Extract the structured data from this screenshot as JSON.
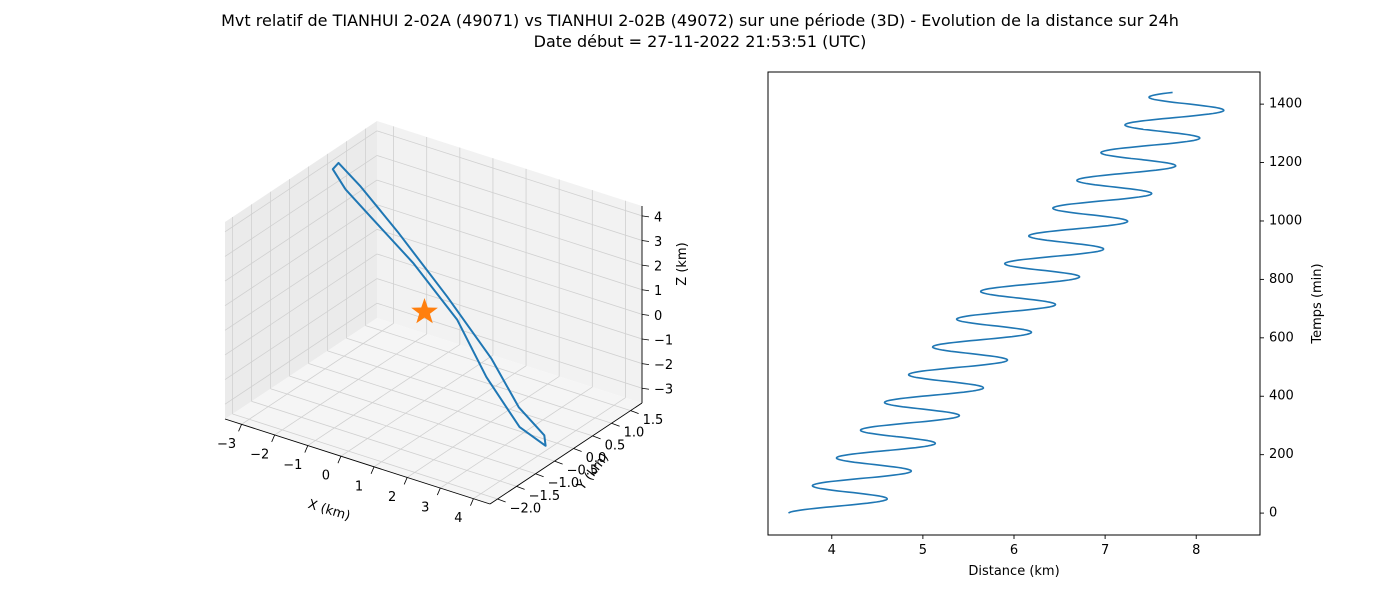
{
  "figure": {
    "title_line1": "Mvt relatif de TIANHUI 2-02A (49071) vs TIANHUI 2-02B (49072) sur une période (3D) - Evolution de la distance sur 24h",
    "title_line2": "Date début = 27-11-2022 21:53:51 (UTC)"
  },
  "colors": {
    "series": "#1f77b4",
    "star": "#ff7f0e",
    "pane": "#f2f2f2",
    "grid": "#d0d0d0"
  },
  "chart_data": [
    {
      "type": "line3d",
      "xlabel": "X (km)",
      "ylabel": "Y (km)",
      "zlabel": "Z (km)",
      "xticks": [
        "−3",
        "−2",
        "−1",
        "0",
        "1",
        "2",
        "3",
        "4"
      ],
      "yticks": [
        "−2.0",
        "−1.5",
        "−1.0",
        "−0.5",
        "0.0",
        "0.5",
        "1.0",
        "1.5"
      ],
      "zticks": [
        "−3",
        "−2",
        "−1",
        "0",
        "1",
        "2",
        "3",
        "4"
      ],
      "xlim": [
        -3.5,
        4.5
      ],
      "ylim": [
        -2.2,
        1.8
      ],
      "zlim": [
        -3.6,
        4.4
      ],
      "grid": true,
      "series": [
        {
          "marker": "line",
          "x": [
            -2.5,
            -3.0,
            -3.0,
            -2.5,
            -1.5,
            0.0,
            1.5,
            2.5,
            3.5,
            4.0,
            3.5,
            2.5,
            1.5,
            0.0,
            -1.5,
            -2.5
          ],
          "y": [
            0.1,
            0.2,
            0.35,
            0.5,
            0.6,
            0.6,
            0.45,
            0.3,
            0.1,
            -0.3,
            -0.55,
            -0.55,
            -0.45,
            -0.3,
            -0.1,
            0.1
          ],
          "z": [
            3.8,
            4.3,
            4.4,
            3.5,
            2.0,
            0.0,
            -1.7,
            -3.1,
            -3.6,
            -3.4,
            -2.6,
            -1.0,
            0.8,
            2.3,
            3.3,
            3.8
          ]
        },
        {
          "marker": "star",
          "x": [
            0
          ],
          "y": [
            0
          ],
          "z": [
            0
          ]
        }
      ]
    },
    {
      "type": "line",
      "xlabel": "Distance (km)",
      "ylabel": "Temps (min)",
      "xticks": [
        4,
        5,
        6,
        7,
        8
      ],
      "yticks": [
        0,
        200,
        400,
        600,
        800,
        1000,
        1200,
        1400
      ],
      "xlim": [
        3.3,
        8.7
      ],
      "ylim": [
        -75,
        1510
      ],
      "y_axis_side": "right",
      "grid": false,
      "model": {
        "center_start_km": 4.0,
        "center_end_km": 8.0,
        "amplitude_km": 0.475,
        "period_min": 95,
        "phase_start": -1.5708
      },
      "series": [
        {
          "name": "",
          "t_min": [
            0,
            1440
          ]
        }
      ]
    }
  ]
}
